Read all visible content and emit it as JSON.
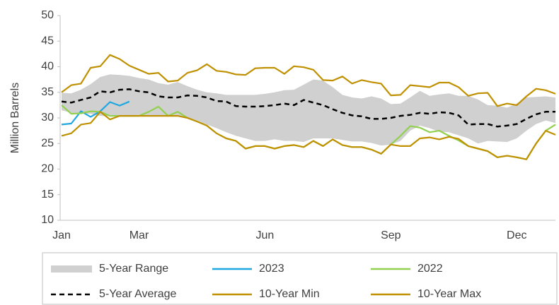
{
  "chart_data": {
    "type": "line",
    "y_label": "Million Barrels",
    "categories": [
      "Jan",
      null,
      null,
      null,
      null,
      null,
      null,
      null,
      "Mar",
      null,
      null,
      null,
      null,
      null,
      null,
      null,
      null,
      null,
      null,
      null,
      null,
      "Jun",
      null,
      null,
      null,
      null,
      null,
      null,
      null,
      null,
      null,
      null,
      null,
      null,
      "Sep",
      null,
      null,
      null,
      null,
      null,
      null,
      null,
      null,
      null,
      null,
      null,
      null,
      "Dec",
      null,
      null,
      null,
      null
    ],
    "ylim": [
      10,
      50
    ],
    "yticks": [
      10,
      15,
      20,
      25,
      30,
      35,
      40,
      45,
      50
    ],
    "series": [
      {
        "name": "5-Year Range",
        "color": "#d0d0d0",
        "low": [
          31.5,
          31,
          30.8,
          30.8,
          30.4,
          30.3,
          30.3,
          30.3,
          30.3,
          30.4,
          30.5,
          30.4,
          30.4,
          30.1,
          29.5,
          28.7,
          28,
          27.2,
          26.5,
          26,
          25.5,
          25.5,
          25.8,
          25.5,
          25.5,
          25.3,
          26,
          26,
          26,
          25.7,
          25.4,
          25.4,
          25.1,
          24.6,
          24.8,
          25.5,
          27.5,
          28.5,
          28,
          27.3,
          27.2,
          26.6,
          26,
          25,
          25.5,
          25.4,
          25.3,
          26,
          27.5,
          28.8,
          29.5,
          29
        ],
        "high": [
          34.9,
          34.8,
          35.5,
          36.6,
          38,
          38.5,
          38.4,
          38.2,
          37.8,
          37.5,
          36.8,
          36.5,
          37,
          36.2,
          35.5,
          35,
          34.8,
          34.5,
          34.5,
          34.5,
          34.5,
          34.7,
          35,
          35.4,
          35.5,
          36.5,
          37.5,
          37.3,
          36,
          34.5,
          34,
          33.8,
          34.2,
          33.8,
          32.7,
          32.8,
          34,
          35.3,
          34.3,
          34.6,
          34.8,
          34.3,
          34.3,
          33.6,
          32.5,
          32.4,
          32,
          32.8,
          34,
          34.1,
          34.2,
          34
        ]
      },
      {
        "name": "2023",
        "color": "#1fa7e1",
        "values": [
          28.7,
          28.9,
          31.3,
          30.2,
          31.3,
          33.1,
          32.4,
          33.2,
          null,
          null,
          null,
          null,
          null,
          null,
          null,
          null,
          null,
          null,
          null,
          null,
          null,
          null,
          null,
          null,
          null,
          null,
          null,
          null,
          null,
          null,
          null,
          null,
          null,
          null,
          null,
          null,
          null,
          null,
          null,
          null,
          null,
          null,
          null,
          null,
          null,
          null,
          null,
          null,
          null,
          null,
          null,
          null
        ]
      },
      {
        "name": "2022",
        "color": "#92d050",
        "values": [
          32.5,
          30.8,
          30.9,
          31.3,
          31.2,
          30.4,
          30.4,
          30.4,
          30.4,
          31.2,
          32.2,
          30.4,
          31.2,
          30,
          29.3,
          28.5,
          27,
          26,
          25.5,
          24,
          24.5,
          24.5,
          24,
          24.5,
          24.7,
          24.3,
          25.5,
          24.5,
          25.8,
          24.7,
          24.3,
          24.3,
          23.8,
          23,
          24.8,
          26.5,
          28.4,
          28.1,
          27.2,
          27.5,
          26.5,
          25.6,
          24.5,
          24,
          23.5,
          22.3,
          22.6,
          22.3,
          21.9,
          25,
          27.5,
          28.7
        ]
      },
      {
        "name": "5-Year Average",
        "color": "#000000",
        "dashed": true,
        "values": [
          33.2,
          33,
          33.5,
          34,
          35.2,
          35,
          35.5,
          35.6,
          35.2,
          35,
          34.2,
          34,
          34,
          34.4,
          34.3,
          34,
          33.3,
          33.2,
          32.3,
          32.2,
          32.2,
          32.3,
          32.5,
          32.8,
          32.5,
          33.5,
          33,
          32.5,
          31.7,
          31,
          30.5,
          30.3,
          29.8,
          29.8,
          30,
          30.4,
          30.6,
          31,
          30.8,
          31.1,
          31,
          30.5,
          28.7,
          28.8,
          28.8,
          28.3,
          28.5,
          28.8,
          29.8,
          30.7,
          31.2,
          31.2
        ]
      },
      {
        "name": "10-Year Min",
        "color": "#bf9000",
        "values": [
          26.5,
          27,
          28.7,
          29,
          31.2,
          29.7,
          30.4,
          30.4,
          30.4,
          30.4,
          30.4,
          30.4,
          30.4,
          30,
          29.3,
          28.5,
          27,
          26,
          25.5,
          24,
          24.5,
          24.5,
          24,
          24.5,
          24.7,
          24.3,
          25.5,
          24.5,
          25.8,
          24.7,
          24.3,
          24.3,
          23.8,
          23,
          24.8,
          24.5,
          24.5,
          26,
          26.2,
          25.8,
          26.3,
          25.9,
          24.5,
          24,
          23.5,
          22.3,
          22.6,
          22.3,
          21.9,
          25,
          27.5,
          26.7
        ]
      },
      {
        "name": "10-Year Max",
        "color": "#bf9000",
        "values": [
          35,
          36.4,
          36.7,
          39.8,
          40.1,
          42.3,
          41.5,
          40.2,
          39.4,
          38.6,
          38.8,
          37.1,
          37.3,
          38.8,
          39.3,
          40.5,
          39.2,
          39,
          38.5,
          38.4,
          39.7,
          39.8,
          39.8,
          38.6,
          40.1,
          39.9,
          39.4,
          37.4,
          37.3,
          38.1,
          36.7,
          37.4,
          37,
          36.7,
          34.4,
          34.5,
          36.4,
          36.2,
          36,
          36.9,
          36.9,
          36,
          34.3,
          34.8,
          34.9,
          32.3,
          32.8,
          32.5,
          34.2,
          35.7,
          35.4,
          34.7
        ]
      }
    ]
  }
}
